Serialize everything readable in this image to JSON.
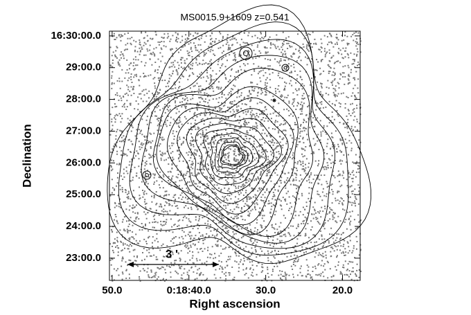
{
  "chart_data": {
    "type": "image",
    "title": "MS0015.9+1609 z=0.541",
    "x_label": "Right ascension",
    "y_label": "Declination",
    "annotation": "3 '",
    "xlim": [
      50.35,
      17.7
    ],
    "ylim": [
      22.3,
      30.15
    ],
    "xticks": [
      {
        "value": 50,
        "label": "50.0"
      },
      {
        "value": 40,
        "label": "0:18:40.0"
      },
      {
        "value": 30,
        "label": "30.0"
      },
      {
        "value": 20,
        "label": "20.0"
      }
    ],
    "yticks": [
      {
        "value": 30,
        "label": "16:30:00.0"
      },
      {
        "value": 29,
        "label": "29:00.0"
      },
      {
        "value": 28,
        "label": "28:00.0"
      },
      {
        "value": 27,
        "label": "27:00.0"
      },
      {
        "value": 26,
        "label": "26:00.0"
      },
      {
        "value": 25,
        "label": "25:00.0"
      },
      {
        "value": 24,
        "label": "24:00.0"
      },
      {
        "value": 23,
        "label": "23:00.0"
      }
    ]
  }
}
